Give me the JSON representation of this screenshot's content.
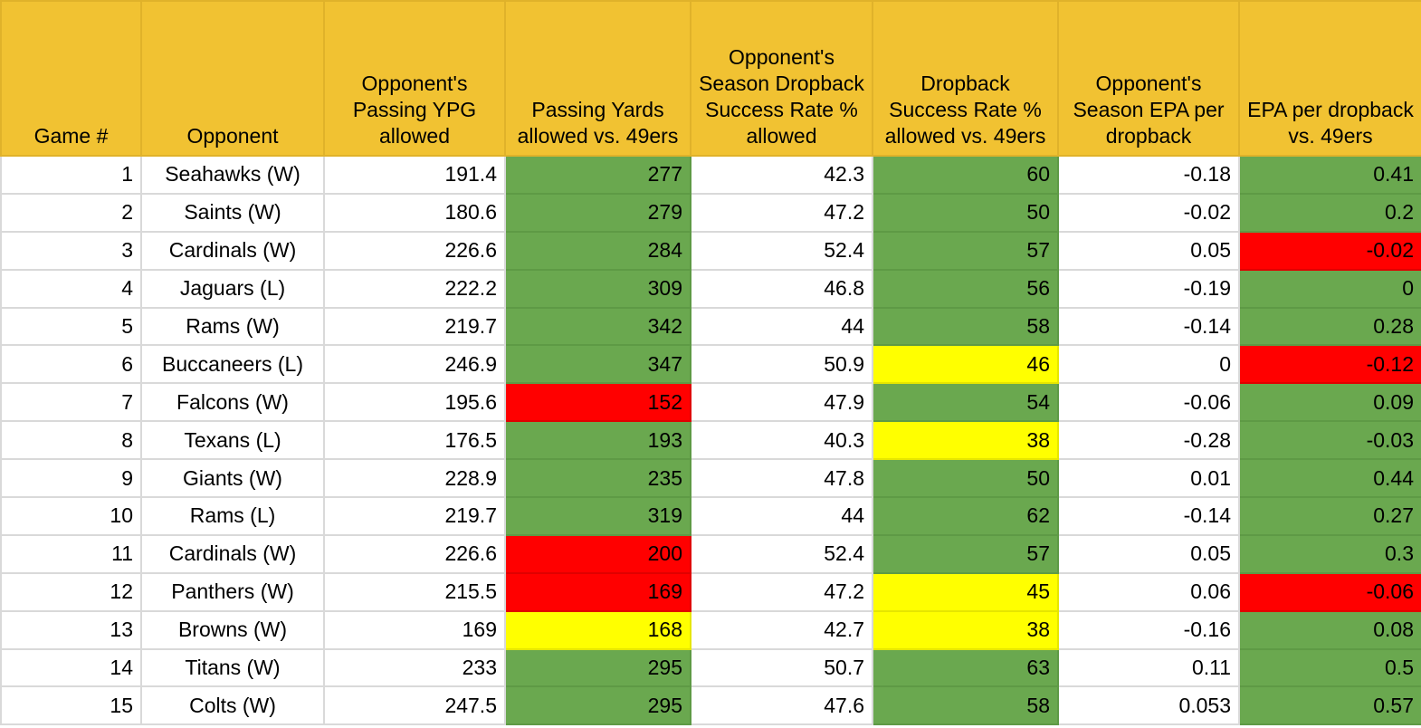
{
  "colors": {
    "header": "#f1c232",
    "green": "#6aa84f",
    "red": "#ff0000",
    "yellow": "#ffff00"
  },
  "headers": [
    "Game #",
    "Opponent",
    "Opponent's Passing YPG allowed",
    "Passing Yards allowed vs. 49ers",
    "Opponent's Season Dropback Success Rate % allowed",
    "Dropback Success Rate % allowed vs. 49ers",
    "Opponent's Season EPA per dropback",
    "EPA per dropback vs. 49ers"
  ],
  "rows": [
    {
      "cells": [
        "1",
        "Seahawks (W)",
        "191.4",
        "277",
        "42.3",
        "60",
        "-0.18",
        "0.41"
      ],
      "fills": [
        "",
        "",
        "",
        "green",
        "",
        "green",
        "",
        "green"
      ]
    },
    {
      "cells": [
        "2",
        "Saints (W)",
        "180.6",
        "279",
        "47.2",
        "50",
        "-0.02",
        "0.2"
      ],
      "fills": [
        "",
        "",
        "",
        "green",
        "",
        "green",
        "",
        "green"
      ]
    },
    {
      "cells": [
        "3",
        "Cardinals (W)",
        "226.6",
        "284",
        "52.4",
        "57",
        "0.05",
        "-0.02"
      ],
      "fills": [
        "",
        "",
        "",
        "green",
        "",
        "green",
        "",
        "red"
      ]
    },
    {
      "cells": [
        "4",
        "Jaguars (L)",
        "222.2",
        "309",
        "46.8",
        "56",
        "-0.19",
        "0"
      ],
      "fills": [
        "",
        "",
        "",
        "green",
        "",
        "green",
        "",
        "green"
      ]
    },
    {
      "cells": [
        "5",
        "Rams (W)",
        "219.7",
        "342",
        "44",
        "58",
        "-0.14",
        "0.28"
      ],
      "fills": [
        "",
        "",
        "",
        "green",
        "",
        "green",
        "",
        "green"
      ]
    },
    {
      "cells": [
        "6",
        "Buccaneers (L)",
        "246.9",
        "347",
        "50.9",
        "46",
        "0",
        "-0.12"
      ],
      "fills": [
        "",
        "",
        "",
        "green",
        "",
        "yellow",
        "",
        "red"
      ]
    },
    {
      "cells": [
        "7",
        "Falcons (W)",
        "195.6",
        "152",
        "47.9",
        "54",
        "-0.06",
        "0.09"
      ],
      "fills": [
        "",
        "",
        "",
        "red",
        "",
        "green",
        "",
        "green"
      ]
    },
    {
      "cells": [
        "8",
        "Texans (L)",
        "176.5",
        "193",
        "40.3",
        "38",
        "-0.28",
        "-0.03"
      ],
      "fills": [
        "",
        "",
        "",
        "green",
        "",
        "yellow",
        "",
        "green"
      ]
    },
    {
      "cells": [
        "9",
        "Giants (W)",
        "228.9",
        "235",
        "47.8",
        "50",
        "0.01",
        "0.44"
      ],
      "fills": [
        "",
        "",
        "",
        "green",
        "",
        "green",
        "",
        "green"
      ]
    },
    {
      "cells": [
        "10",
        "Rams (L)",
        "219.7",
        "319",
        "44",
        "62",
        "-0.14",
        "0.27"
      ],
      "fills": [
        "",
        "",
        "",
        "green",
        "",
        "green",
        "",
        "green"
      ]
    },
    {
      "cells": [
        "11",
        "Cardinals (W)",
        "226.6",
        "200",
        "52.4",
        "57",
        "0.05",
        "0.3"
      ],
      "fills": [
        "",
        "",
        "",
        "red",
        "",
        "green",
        "",
        "green"
      ]
    },
    {
      "cells": [
        "12",
        "Panthers (W)",
        "215.5",
        "169",
        "47.2",
        "45",
        "0.06",
        "-0.06"
      ],
      "fills": [
        "",
        "",
        "",
        "red",
        "",
        "yellow",
        "",
        "red"
      ]
    },
    {
      "cells": [
        "13",
        "Browns (W)",
        "169",
        "168",
        "42.7",
        "38",
        "-0.16",
        "0.08"
      ],
      "fills": [
        "",
        "",
        "",
        "yellow",
        "",
        "yellow",
        "",
        "green"
      ]
    },
    {
      "cells": [
        "14",
        "Titans (W)",
        "233",
        "295",
        "50.7",
        "63",
        "0.11",
        "0.5"
      ],
      "fills": [
        "",
        "",
        "",
        "green",
        "",
        "green",
        "",
        "green"
      ]
    },
    {
      "cells": [
        "15",
        "Colts (W)",
        "247.5",
        "295",
        "47.6",
        "58",
        "0.053",
        "0.57"
      ],
      "fills": [
        "",
        "",
        "",
        "green",
        "",
        "green",
        "",
        "green"
      ]
    }
  ]
}
